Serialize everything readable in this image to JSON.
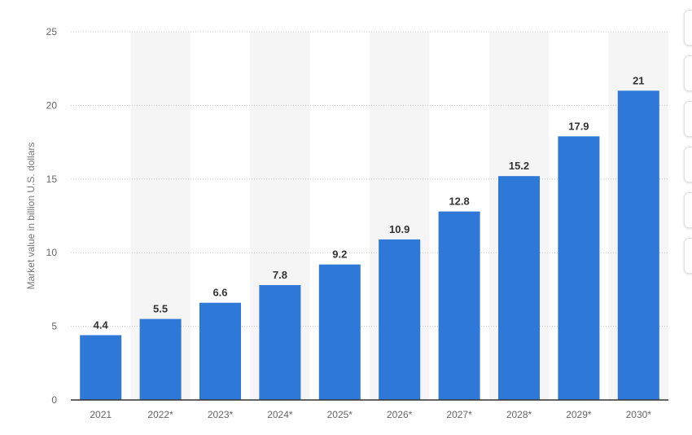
{
  "chart_data": {
    "type": "bar",
    "title": "",
    "xlabel": "",
    "ylabel": "Market value in billion U.S. dollars",
    "ylim": [
      0,
      25
    ],
    "yticks": [
      0,
      5,
      10,
      15,
      20,
      25
    ],
    "categories": [
      "2021",
      "2022*",
      "2023*",
      "2024*",
      "2025*",
      "2026*",
      "2027*",
      "2028*",
      "2029*",
      "2030*"
    ],
    "values": [
      4.4,
      5.5,
      6.6,
      7.8,
      9.2,
      10.9,
      12.8,
      15.2,
      17.9,
      21
    ],
    "value_labels": [
      "4.4",
      "5.5",
      "6.6",
      "7.8",
      "9.2",
      "10.9",
      "12.8",
      "15.2",
      "17.9",
      "21"
    ],
    "bar_color": "#2e78d8",
    "band_color": "#f5f5f5",
    "grid": true
  },
  "side_panel": {
    "button_count": 6
  }
}
